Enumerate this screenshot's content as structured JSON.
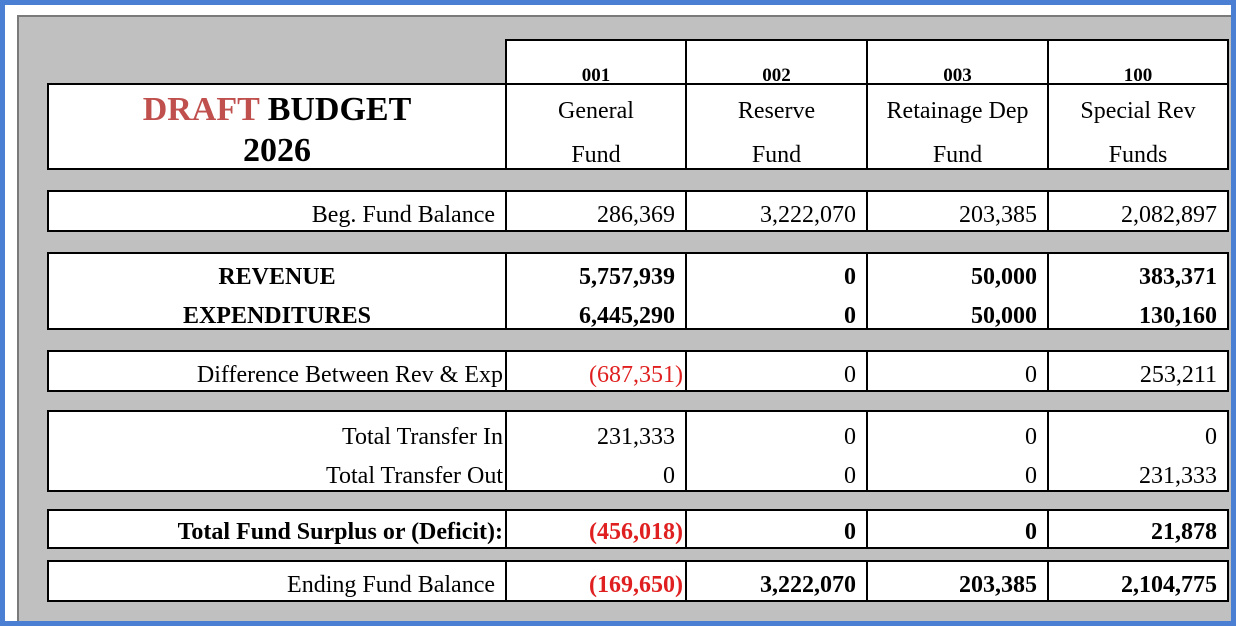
{
  "title": {
    "draft": "DRAFT",
    "budget": "BUDGET",
    "year": "2026"
  },
  "colors": {
    "negative": "#e02020",
    "draft": "#c0504d",
    "frame": "#4a7fd4"
  },
  "funds": [
    {
      "code": "001",
      "name1": "General",
      "name2": "Fund"
    },
    {
      "code": "002",
      "name1": "Reserve",
      "name2": "Fund"
    },
    {
      "code": "003",
      "name1": "Retainage Dep",
      "name2": "Fund"
    },
    {
      "code": "100",
      "name1": "Special Rev",
      "name2": "Funds"
    }
  ],
  "rows": {
    "beg_balance": {
      "label": "Beg. Fund Balance",
      "values": [
        "286,369",
        "3,222,070",
        "203,385",
        "2,082,897"
      ]
    },
    "revenue": {
      "label": "REVENUE",
      "values": [
        "5,757,939",
        "0",
        "50,000",
        "383,371"
      ]
    },
    "expenditures": {
      "label": "EXPENDITURES",
      "values": [
        "6,445,290",
        "0",
        "50,000",
        "130,160"
      ]
    },
    "difference": {
      "label": "Difference Between Rev & Exp",
      "values": [
        "(687,351)",
        "0",
        "0",
        "253,211"
      ]
    },
    "transfer_in": {
      "label": "Total Transfer In",
      "values": [
        "231,333",
        "0",
        "0",
        "0"
      ]
    },
    "transfer_out": {
      "label": "Total Transfer Out",
      "values": [
        "0",
        "0",
        "0",
        "231,333"
      ]
    },
    "surplus": {
      "label": "Total Fund Surplus or (Deficit):",
      "values": [
        "(456,018)",
        "0",
        "0",
        "21,878"
      ]
    },
    "ending_balance": {
      "label": "Ending Fund Balance",
      "values": [
        "(169,650)",
        "3,222,070",
        "203,385",
        "2,104,775"
      ]
    }
  }
}
